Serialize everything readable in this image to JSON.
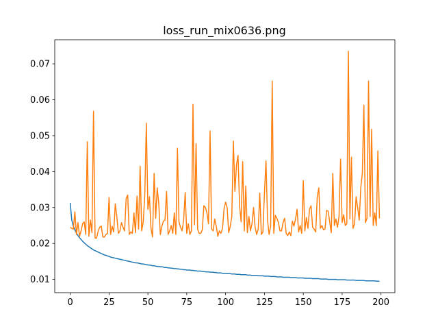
{
  "chart_data": {
    "type": "line",
    "title": "loss_run_mix0636.png",
    "x": [
      0,
      1,
      2,
      3,
      4,
      5,
      6,
      7,
      8,
      9,
      10,
      11,
      12,
      13,
      14,
      15,
      16,
      17,
      18,
      19,
      20,
      21,
      22,
      23,
      24,
      25,
      26,
      27,
      28,
      29,
      30,
      31,
      32,
      33,
      34,
      35,
      36,
      37,
      38,
      39,
      40,
      41,
      42,
      43,
      44,
      45,
      46,
      47,
      48,
      49,
      50,
      51,
      52,
      53,
      54,
      55,
      56,
      57,
      58,
      59,
      60,
      61,
      62,
      63,
      64,
      65,
      66,
      67,
      68,
      69,
      70,
      71,
      72,
      73,
      74,
      75,
      76,
      77,
      78,
      79,
      80,
      81,
      82,
      83,
      84,
      85,
      86,
      87,
      88,
      89,
      90,
      91,
      92,
      93,
      94,
      95,
      96,
      97,
      98,
      99,
      100,
      101,
      102,
      103,
      104,
      105,
      106,
      107,
      108,
      109,
      110,
      111,
      112,
      113,
      114,
      115,
      116,
      117,
      118,
      119,
      120,
      121,
      122,
      123,
      124,
      125,
      126,
      127,
      128,
      129,
      130,
      131,
      132,
      133,
      134,
      135,
      136,
      137,
      138,
      139,
      140,
      141,
      142,
      143,
      144,
      145,
      146,
      147,
      148,
      149,
      150,
      151,
      152,
      153,
      154,
      155,
      156,
      157,
      158,
      159,
      160,
      161,
      162,
      163,
      164,
      165,
      166,
      167,
      168,
      169,
      170,
      171,
      172,
      173,
      174,
      175,
      176,
      177,
      178,
      179,
      180,
      181,
      182,
      183,
      184,
      185,
      186,
      187,
      188,
      189,
      190,
      191,
      192,
      193,
      194,
      195,
      196,
      197,
      198,
      199
    ],
    "series": [
      {
        "color": "#1f77b4",
        "values": [
          0.0313,
          0.0265,
          0.0248,
          0.0238,
          0.0229,
          0.0222,
          0.0216,
          0.0211,
          0.0206,
          0.0202,
          0.0198,
          0.0194,
          0.0191,
          0.0188,
          0.0185,
          0.0182,
          0.018,
          0.0178,
          0.0176,
          0.0174,
          0.0172,
          0.017,
          0.0168,
          0.0167,
          0.0165,
          0.0164,
          0.0162,
          0.0161,
          0.016,
          0.0159,
          0.0158,
          0.0157,
          0.0156,
          0.0155,
          0.0154,
          0.0153,
          0.0152,
          0.0151,
          0.015,
          0.0149,
          0.0148,
          0.0147,
          0.0146,
          0.0146,
          0.0145,
          0.0144,
          0.0143,
          0.0143,
          0.0142,
          0.0141,
          0.014,
          0.014,
          0.0139,
          0.0138,
          0.0138,
          0.0137,
          0.0136,
          0.0136,
          0.0135,
          0.0135,
          0.0134,
          0.0133,
          0.0133,
          0.0132,
          0.0132,
          0.0131,
          0.0131,
          0.013,
          0.013,
          0.0129,
          0.0129,
          0.0128,
          0.0128,
          0.0127,
          0.0127,
          0.0126,
          0.0126,
          0.0126,
          0.0125,
          0.0125,
          0.0124,
          0.0124,
          0.0123,
          0.0123,
          0.0123,
          0.0122,
          0.0122,
          0.0121,
          0.0121,
          0.0121,
          0.012,
          0.012,
          0.012,
          0.0119,
          0.0119,
          0.0118,
          0.0118,
          0.0118,
          0.0117,
          0.0117,
          0.0117,
          0.0116,
          0.0116,
          0.0116,
          0.0115,
          0.0115,
          0.0115,
          0.0114,
          0.0114,
          0.0114,
          0.0113,
          0.0113,
          0.0113,
          0.0113,
          0.0112,
          0.0112,
          0.0112,
          0.0111,
          0.0111,
          0.0111,
          0.0111,
          0.011,
          0.011,
          0.011,
          0.011,
          0.0109,
          0.0109,
          0.0109,
          0.0109,
          0.0108,
          0.0108,
          0.0108,
          0.0108,
          0.0107,
          0.0107,
          0.0107,
          0.0107,
          0.0106,
          0.0106,
          0.0106,
          0.0106,
          0.0106,
          0.0105,
          0.0105,
          0.0105,
          0.0105,
          0.0104,
          0.0104,
          0.0104,
          0.0104,
          0.0104,
          0.0103,
          0.0103,
          0.0103,
          0.0103,
          0.0103,
          0.0102,
          0.0102,
          0.0102,
          0.0102,
          0.0102,
          0.0101,
          0.0101,
          0.0101,
          0.0101,
          0.0101,
          0.01,
          0.01,
          0.01,
          0.01,
          0.01,
          0.01,
          0.0099,
          0.0099,
          0.0099,
          0.0099,
          0.0099,
          0.0099,
          0.0098,
          0.0098,
          0.0098,
          0.0098,
          0.0098,
          0.0098,
          0.0097,
          0.0097,
          0.0097,
          0.0097,
          0.0097,
          0.0097,
          0.0096,
          0.0096,
          0.0096,
          0.0096,
          0.0096,
          0.0096,
          0.0096,
          0.0095,
          0.0095,
          0.0095
        ]
      },
      {
        "color": "#ff7f0e",
        "values": [
          0.0245,
          0.0242,
          0.024,
          0.0288,
          0.0225,
          0.0258,
          0.022,
          0.0235,
          0.0255,
          0.026,
          0.0225,
          0.0483,
          0.022,
          0.0265,
          0.023,
          0.0568,
          0.0215,
          0.0215,
          0.0235,
          0.0245,
          0.0248,
          0.0218,
          0.0218,
          0.0225,
          0.0228,
          0.0328,
          0.0225,
          0.0248,
          0.0232,
          0.031,
          0.0275,
          0.0228,
          0.0235,
          0.0258,
          0.0245,
          0.0235,
          0.0325,
          0.0335,
          0.0225,
          0.0232,
          0.0228,
          0.0285,
          0.023,
          0.0332,
          0.024,
          0.0415,
          0.0235,
          0.026,
          0.0335,
          0.0535,
          0.0295,
          0.033,
          0.0242,
          0.0218,
          0.0395,
          0.027,
          0.0355,
          0.031,
          0.0225,
          0.0248,
          0.0262,
          0.0265,
          0.0345,
          0.0225,
          0.0235,
          0.025,
          0.0228,
          0.0285,
          0.0225,
          0.0465,
          0.026,
          0.0245,
          0.0235,
          0.0265,
          0.0342,
          0.0228,
          0.0255,
          0.0225,
          0.0235,
          0.0587,
          0.0252,
          0.0478,
          0.024,
          0.0228,
          0.0228,
          0.0238,
          0.0305,
          0.03,
          0.0285,
          0.0255,
          0.0513,
          0.024,
          0.0235,
          0.0268,
          0.0248,
          0.022,
          0.0235,
          0.0228,
          0.0242,
          0.0295,
          0.0315,
          0.03,
          0.023,
          0.0248,
          0.0275,
          0.0485,
          0.0345,
          0.0418,
          0.0445,
          0.0305,
          0.026,
          0.0428,
          0.0235,
          0.036,
          0.023,
          0.0275,
          0.0235,
          0.0255,
          0.03,
          0.0245,
          0.0225,
          0.024,
          0.034,
          0.0225,
          0.0232,
          0.034,
          0.043,
          0.0265,
          0.0225,
          0.0248,
          0.0652,
          0.0228,
          0.0278,
          0.027,
          0.0258,
          0.0235,
          0.0235,
          0.0258,
          0.027,
          0.0228,
          0.0222,
          0.0232,
          0.0222,
          0.0262,
          0.0248,
          0.0268,
          0.0295,
          0.0232,
          0.025,
          0.0228,
          0.0375,
          0.0235,
          0.0272,
          0.0242,
          0.0295,
          0.0305,
          0.0245,
          0.024,
          0.0232,
          0.033,
          0.0355,
          0.0242,
          0.025,
          0.0238,
          0.024,
          0.0292,
          0.029,
          0.026,
          0.023,
          0.0395,
          0.025,
          0.0268,
          0.0245,
          0.0275,
          0.0435,
          0.0258,
          0.028,
          0.025,
          0.0255,
          0.0735,
          0.0268,
          0.044,
          0.0242,
          0.0255,
          0.033,
          0.03,
          0.0265,
          0.0355,
          0.0395,
          0.0585,
          0.0258,
          0.027,
          0.0652,
          0.0275,
          0.0518,
          0.025,
          0.0285,
          0.025,
          0.0458,
          0.027
        ]
      }
    ],
    "xlim": [
      -9.95,
      208.95
    ],
    "xticks": [
      0,
      25,
      50,
      75,
      100,
      125,
      150,
      175,
      200
    ],
    "ylim": [
      0.0063,
      0.0767
    ],
    "yticks": [
      0.01,
      0.02,
      0.03,
      0.04,
      0.05,
      0.06,
      0.07
    ]
  }
}
